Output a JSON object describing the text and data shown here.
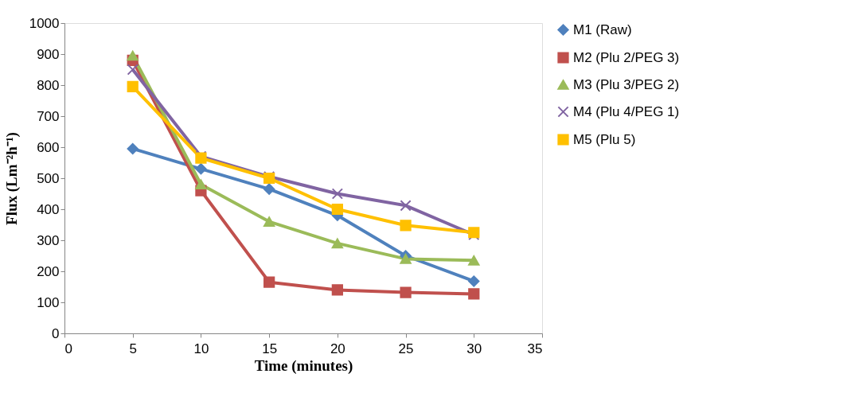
{
  "chart_data": {
    "type": "line",
    "xlabel": "Time (minutes)",
    "ylabel": "Flux (Lm⁻²h⁻¹)",
    "x": [
      5,
      10,
      15,
      20,
      25,
      30
    ],
    "xlim": [
      0,
      35
    ],
    "xticks": [
      0,
      5,
      10,
      15,
      20,
      25,
      30,
      35
    ],
    "ylim": [
      0,
      1000
    ],
    "yticks": [
      0,
      100,
      200,
      300,
      400,
      500,
      600,
      700,
      800,
      900,
      1000
    ],
    "grid": false,
    "legend": "right",
    "line_style": "solid",
    "series": [
      {
        "name": "M1 (Raw)",
        "color": "#4f81bd",
        "marker": "diamond",
        "values": [
          595,
          530,
          465,
          380,
          250,
          168
        ]
      },
      {
        "name": "M2 (Plu 2/PEG 3)",
        "color": "#c0504d",
        "marker": "square",
        "values": [
          880,
          460,
          165,
          140,
          132,
          127
        ]
      },
      {
        "name": "M3 (Plu 3/PEG 2)",
        "color": "#9bbb59",
        "marker": "triangle",
        "values": [
          895,
          480,
          360,
          290,
          240,
          235
        ]
      },
      {
        "name": "M4 (Plu 4/PEG 1)",
        "color": "#8064a2",
        "marker": "cross",
        "values": [
          850,
          570,
          505,
          450,
          412,
          318
        ]
      },
      {
        "name": "M5 (Plu 5)",
        "color": "#ffc000",
        "marker": "square",
        "values": [
          795,
          565,
          500,
          400,
          348,
          325
        ]
      }
    ]
  }
}
